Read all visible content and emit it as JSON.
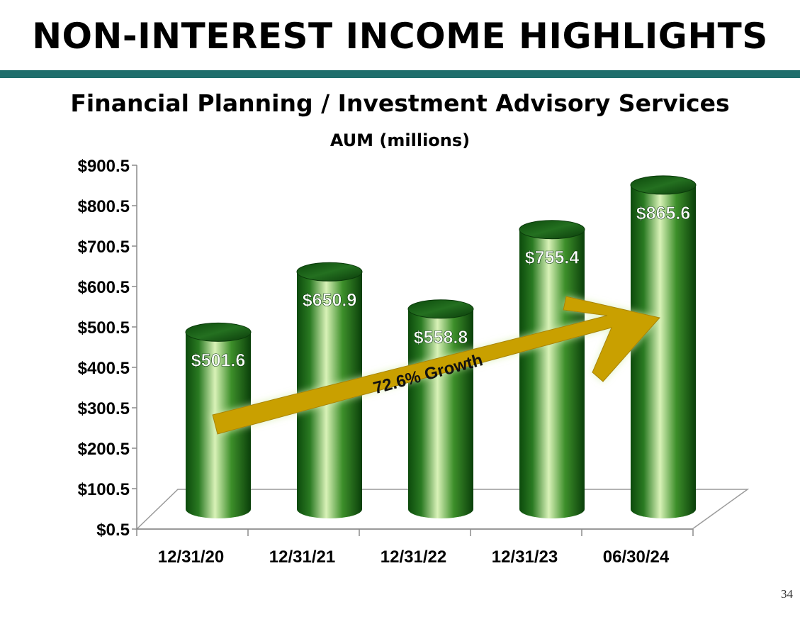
{
  "slide": {
    "title": "NON-INTEREST INCOME HIGHLIGHTS",
    "page_number": "34",
    "accent_color": "#1f6e6c"
  },
  "chart_data": {
    "type": "bar",
    "title": "Financial Planning / Investment Advisory Services",
    "subtitle": "AUM (millions)",
    "categories": [
      "12/31/20",
      "12/31/21",
      "12/31/22",
      "12/31/23",
      "06/30/24"
    ],
    "values": [
      501.6,
      650.9,
      558.8,
      755.4,
      865.6
    ],
    "data_labels": [
      "$501.6",
      "$650.9",
      "$558.8",
      "$755.4",
      "$865.6"
    ],
    "y_ticks": [
      "$0.5",
      "$100.5",
      "$200.5",
      "$300.5",
      "$400.5",
      "$500.5",
      "$600.5",
      "$700.5",
      "$800.5",
      "$900.5"
    ],
    "ylim": [
      0.5,
      900.5
    ],
    "xlabel": "",
    "ylabel": "",
    "bar_color": "#2e7d1f",
    "annotation": {
      "text": "72.6% Growth",
      "color": "#c9a000",
      "from_category": "12/31/20",
      "to_category": "06/30/24"
    }
  }
}
